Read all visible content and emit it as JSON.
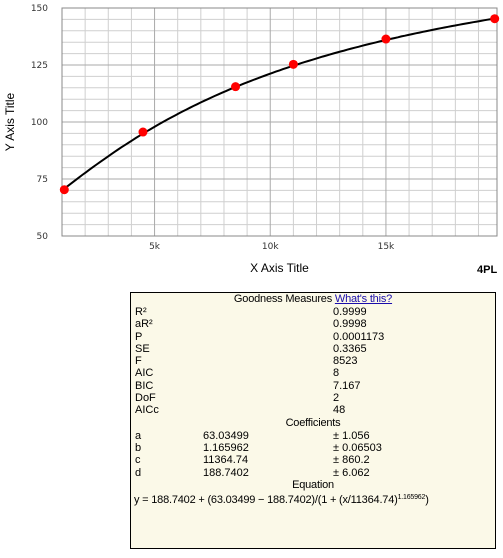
{
  "chart_data": {
    "type": "scatter",
    "model": "4PL",
    "xlabel": "X Axis Title",
    "ylabel": "Y Axis Title",
    "xlim": [
      1000,
      19800
    ],
    "ylim": [
      50,
      150
    ],
    "x_ticks": [
      5000,
      10000,
      15000
    ],
    "x_tick_labels": [
      "5k",
      "10k",
      "15k"
    ],
    "y_ticks": [
      50,
      75,
      100,
      125,
      150
    ],
    "y_tick_labels": [
      "50",
      "75",
      "100",
      "125",
      "150"
    ],
    "grid": true,
    "points": [
      {
        "x": 1100,
        "y": 70.3
      },
      {
        "x": 4500,
        "y": 95.6
      },
      {
        "x": 8500,
        "y": 115.5
      },
      {
        "x": 11000,
        "y": 125.3
      },
      {
        "x": 15000,
        "y": 136.4
      },
      {
        "x": 19700,
        "y": 145.3
      }
    ],
    "fit": {
      "a": 63.03499,
      "b": 1.165962,
      "c": 11364.74,
      "d": 188.7402
    },
    "colors": {
      "points": "#ff0000",
      "curve": "#000000",
      "grid": "#cfcfcf",
      "major_grid": "#aaaaaa"
    }
  },
  "stats": {
    "header": "Goodness Measures",
    "link": "What's this?",
    "measures": [
      {
        "label": "R²",
        "value": "0.9999"
      },
      {
        "label": "aR²",
        "value": "0.9998"
      },
      {
        "label": "P",
        "value": "0.0001173"
      },
      {
        "label": "SE",
        "value": "0.3365"
      },
      {
        "label": "F",
        "value": "8523"
      },
      {
        "label": "AIC",
        "value": "8"
      },
      {
        "label": "BIC",
        "value": "7.167"
      },
      {
        "label": "DoF",
        "value": "2"
      },
      {
        "label": "AICc",
        "value": "48"
      }
    ],
    "coef_header": "Coefficients",
    "coefficients": [
      {
        "name": "a",
        "value": "63.03499",
        "err": "± 1.056"
      },
      {
        "name": "b",
        "value": "1.165962",
        "err": "± 0.06503"
      },
      {
        "name": "c",
        "value": "11364.74",
        "err": "± 860.2"
      },
      {
        "name": "d",
        "value": "188.7402",
        "err": "± 6.062"
      }
    ],
    "eq_header": "Equation",
    "equation": "y = 188.7402 + (63.03499 − 188.7402)/(1 + (x/11364.74)",
    "equation_exp": "1.165962",
    "equation_close": ")"
  },
  "ui": {
    "scroll_up_icon": "▲",
    "bg": "#fbf9e8"
  }
}
